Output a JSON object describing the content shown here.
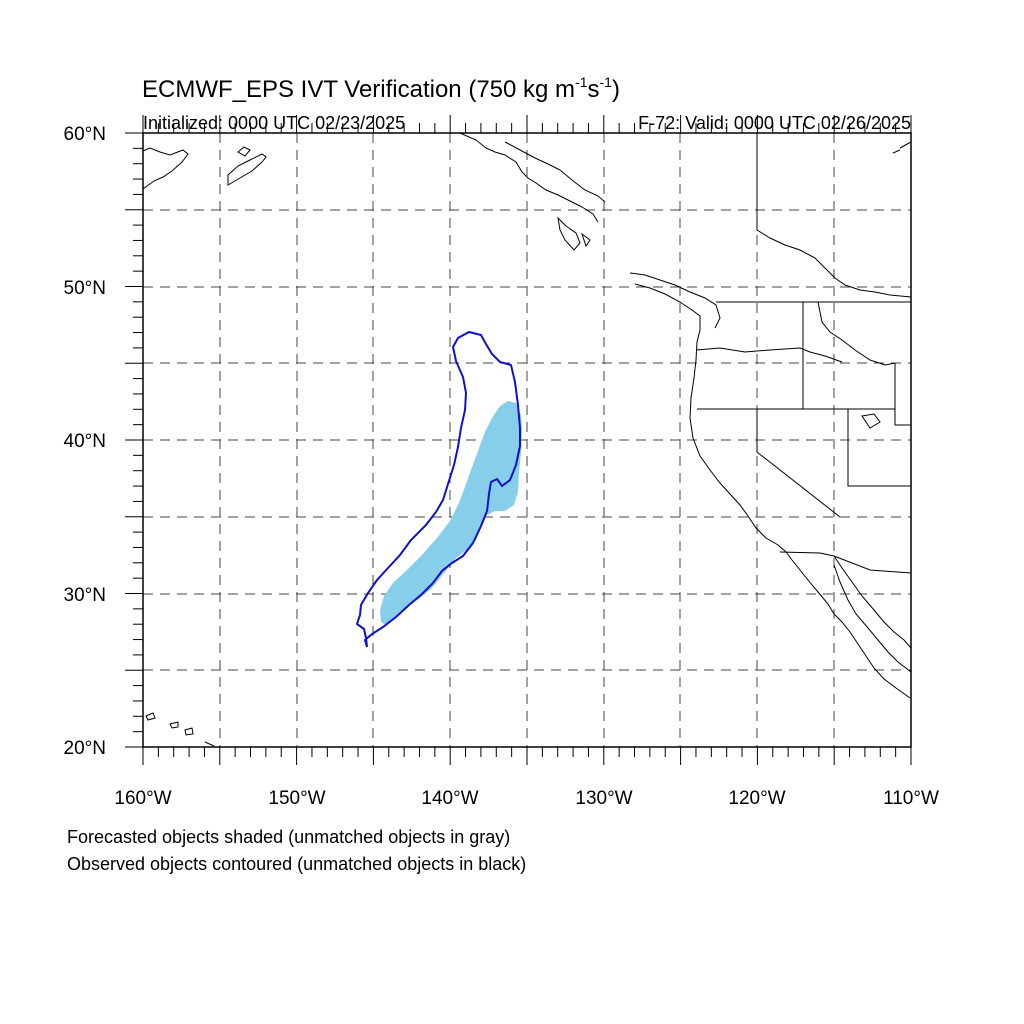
{
  "title": {
    "main": "ECMWF_EPS IVT Verification (750 kg m",
    "sup1": "-1",
    "mid": "s",
    "sup2": "-1",
    "end": ")"
  },
  "initialized": "Initialized: 0000 UTC 02/23/2025",
  "valid": "F-72: Valid: 0000 UTC 02/26/2025",
  "lat_labels": [
    "60°N",
    "50°N",
    "40°N",
    "30°N",
    "20°N"
  ],
  "lon_labels": [
    "160°W",
    "150°W",
    "140°W",
    "130°W",
    "120°W",
    "110°W"
  ],
  "map_extent": {
    "lon": [
      -160,
      -110
    ],
    "lat": [
      20,
      60
    ]
  },
  "colors": {
    "forecast_fill": "#87ceeb",
    "observed_contour": "#1010cc",
    "coastline": "#000000",
    "grid": "#444444"
  },
  "footnotes": [
    "Forecasted objects shaded (unmatched objects in gray)",
    "Observed objects contoured (unmatched objects in black)"
  ]
}
